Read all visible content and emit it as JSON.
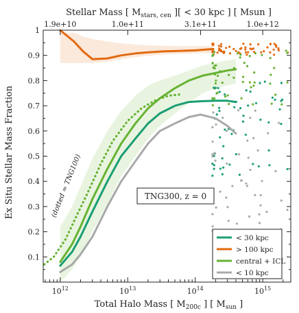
{
  "chart_data": {
    "type": "line",
    "xlabel": "Total Halo Mass [ M_200c ] [ M_sun ]",
    "xlabel_parts": {
      "main": "Total Halo Mass [ M",
      "sub": "200c",
      "mid": " ] [ M",
      "sub2": "sun",
      "end": " ]"
    },
    "ylabel": "Ex Situ Stellar Mass Fraction",
    "top_xlabel": "Stellar Mass [ M_stars, cen ][ < 30 kpc ] [ Msun ]",
    "top_xlabel_parts": {
      "main": "Stellar Mass [ M",
      "sub": "stars, cen",
      "end": " ][ < 30 kpc ] [ Msun ]"
    },
    "x_scale": "log",
    "xlim": [
      560000000000.0,
      2600000000000000.0
    ],
    "ylim": [
      0.0,
      1.0
    ],
    "x_ticks": [
      {
        "value": 1000000000000.0,
        "base": "10",
        "exp": "12"
      },
      {
        "value": 10000000000000.0,
        "base": "10",
        "exp": "13"
      },
      {
        "value": 100000000000000.0,
        "base": "10",
        "exp": "14"
      },
      {
        "value": 1000000000000000.0,
        "base": "10",
        "exp": "15"
      }
    ],
    "y_ticks": [
      0.1,
      0.2,
      0.3,
      0.4,
      0.5,
      0.6,
      0.7,
      0.8,
      0.9,
      1
    ],
    "top_ticks": [
      {
        "label": "1.9e+10",
        "at_halo_mass": 1000000000000.0
      },
      {
        "label": "1.0e+11",
        "at_halo_mass": 10000000000000.0
      },
      {
        "label": "3.1e+11",
        "at_halo_mass": 120000000000000.0
      },
      {
        "label": "1.0e+12",
        "at_halo_mass": 1000000000000000.0
      }
    ],
    "annotations": {
      "box_label": "TNG300, z = 0",
      "dotted_note": "(dotted = TNG100)"
    },
    "legend": {
      "placement": "bottom-right",
      "entries": [
        {
          "label": "< 30 kpc",
          "color": "#1a9e73"
        },
        {
          "label": "> 100 kpc",
          "color": "#e2690f"
        },
        {
          "label": "central + ICL",
          "color": "#66b232"
        },
        {
          "label": "< 10 kpc",
          "color": "#a9a9a9"
        }
      ]
    },
    "series": [
      {
        "name": "> 100 kpc",
        "color": "#e2690f",
        "style": "solid",
        "x": [
          1000000000000.0,
          1600000000000.0,
          2200000000000.0,
          3000000000000.0,
          5000000000000.0,
          8000000000000.0,
          13000000000000.0,
          20000000000000.0,
          35000000000000.0,
          60000000000000.0,
          100000000000000.0,
          180000000000000.0
        ],
        "y": [
          1.0,
          0.955,
          0.915,
          0.885,
          0.888,
          0.9,
          0.908,
          0.912,
          0.916,
          0.918,
          0.92,
          0.925
        ],
        "band_low": [
          0.87,
          0.87,
          0.87,
          0.87,
          0.875,
          0.885,
          0.893,
          0.899,
          0.904,
          0.906,
          0.908,
          0.91
        ],
        "band_high": [
          0.99,
          0.99,
          0.975,
          0.965,
          0.955,
          0.948,
          0.943,
          0.94,
          0.938,
          0.937,
          0.937,
          0.937
        ]
      },
      {
        "name": "central + ICL",
        "color": "#66b232",
        "style": "solid",
        "x": [
          1000000000000.0,
          1500000000000.0,
          2000000000000.0,
          3000000000000.0,
          5000000000000.0,
          8000000000000.0,
          13000000000000.0,
          20000000000000.0,
          30000000000000.0,
          50000000000000.0,
          80000000000000.0,
          130000000000000.0,
          200000000000000.0,
          300000000000000.0,
          400000000000000.0
        ],
        "y": [
          0.08,
          0.15,
          0.22,
          0.33,
          0.45,
          0.55,
          0.63,
          0.69,
          0.73,
          0.77,
          0.8,
          0.82,
          0.83,
          0.84,
          0.845
        ],
        "band_low": [
          0.0,
          0.05,
          0.1,
          0.2,
          0.31,
          0.42,
          0.5,
          0.57,
          0.62,
          0.67,
          0.71,
          0.75,
          0.77,
          0.78,
          0.79
        ],
        "band_high": [
          0.22,
          0.3,
          0.38,
          0.49,
          0.6,
          0.68,
          0.74,
          0.78,
          0.8,
          0.82,
          0.84,
          0.86,
          0.87,
          0.88,
          0.885
        ]
      },
      {
        "name": "< 30 kpc",
        "color": "#1a9e73",
        "style": "solid",
        "x": [
          1000000000000.0,
          1500000000000.0,
          2000000000000.0,
          3000000000000.0,
          5000000000000.0,
          8000000000000.0,
          13000000000000.0,
          20000000000000.0,
          30000000000000.0,
          50000000000000.0,
          80000000000000.0,
          120000000000000.0,
          200000000000000.0,
          300000000000000.0,
          400000000000000.0
        ],
        "y": [
          0.065,
          0.12,
          0.18,
          0.28,
          0.4,
          0.5,
          0.57,
          0.63,
          0.67,
          0.7,
          0.715,
          0.718,
          0.72,
          0.72,
          0.715
        ]
      },
      {
        "name": "< 10 kpc",
        "color": "#a9a9a9",
        "style": "solid",
        "x": [
          1000000000000.0,
          1500000000000.0,
          2000000000000.0,
          3000000000000.0,
          5000000000000.0,
          8000000000000.0,
          13000000000000.0,
          20000000000000.0,
          30000000000000.0,
          50000000000000.0,
          80000000000000.0,
          120000000000000.0,
          200000000000000.0,
          300000000000000.0,
          400000000000000.0
        ],
        "y": [
          0.04,
          0.07,
          0.11,
          0.18,
          0.3,
          0.4,
          0.48,
          0.55,
          0.6,
          0.63,
          0.655,
          0.665,
          0.65,
          0.62,
          0.59
        ]
      },
      {
        "name": "TNG100 central + ICL",
        "color": "#66b232",
        "style": "dotted",
        "x": [
          580000000000.0,
          800000000000.0,
          1200000000000.0,
          1800000000000.0,
          2500000000000.0,
          4000000000000.0,
          6000000000000.0,
          10000000000000.0,
          16000000000000.0,
          25000000000000.0,
          40000000000000.0,
          60000000000000.0
        ],
        "y": [
          0.07,
          0.1,
          0.17,
          0.27,
          0.35,
          0.47,
          0.56,
          0.64,
          0.69,
          0.72,
          0.74,
          0.745
        ]
      }
    ]
  }
}
